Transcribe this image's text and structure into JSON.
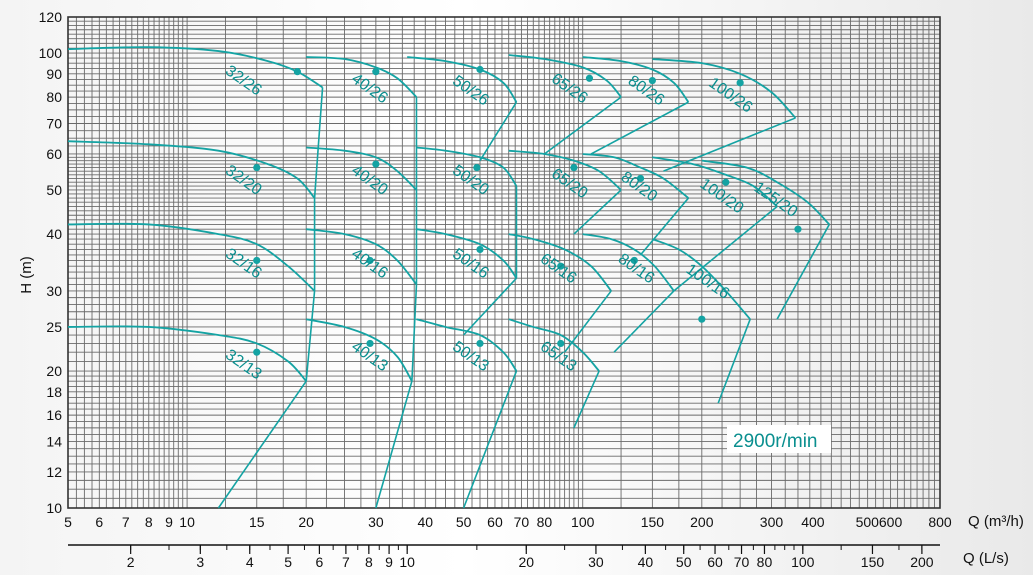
{
  "chart_data": {
    "type": "line",
    "title": "",
    "speed_label": "2900r/min",
    "xlabel": "Q (m³/h)",
    "x2label": "Q (L/s)",
    "ylabel": "H (m)",
    "x_scale": "log",
    "y_scale": "log",
    "xlim": [
      5,
      800
    ],
    "ylim": [
      10,
      120
    ],
    "grid": true,
    "x_ticks": [
      "5",
      "6",
      "7",
      "8",
      "9",
      "10",
      "15",
      "20",
      "30",
      "40",
      "50",
      "60",
      "70",
      "80",
      "100",
      "150",
      "200",
      "300",
      "400",
      "500",
      "600",
      "800"
    ],
    "x2_ticks": [
      "2",
      "3",
      "4",
      "5",
      "6",
      "7",
      "8",
      "9",
      "10",
      "20",
      "30",
      "40",
      "50",
      "60",
      "70",
      "80",
      "100",
      "150",
      "200"
    ],
    "y_ticks": [
      "10",
      "12",
      "14",
      "16",
      "18",
      "20",
      "25",
      "30",
      "40",
      "50",
      "60",
      "70",
      "80",
      "90",
      "100",
      "120"
    ],
    "series": [
      {
        "name": "32/26",
        "color": "#14a3a3",
        "x": [
          5,
          8,
          12,
          16,
          19,
          22
        ],
        "y": [
          102,
          103,
          101,
          96,
          91,
          84
        ],
        "op": [
          19,
          91
        ]
      },
      {
        "name": "40/26",
        "color": "#14a3a3",
        "x": [
          20,
          25,
          30,
          34,
          38
        ],
        "y": [
          98,
          97,
          93,
          88,
          80
        ],
        "op": [
          30,
          91
        ]
      },
      {
        "name": "50/26",
        "color": "#14a3a3",
        "x": [
          36,
          45,
          55,
          63,
          68
        ],
        "y": [
          98,
          96,
          92,
          86,
          78
        ],
        "op": [
          55,
          92
        ]
      },
      {
        "name": "65/26",
        "color": "#14a3a3",
        "x": [
          65,
          80,
          100,
          115,
          125
        ],
        "y": [
          99,
          97,
          93,
          87,
          80
        ],
        "op": [
          104,
          88
        ]
      },
      {
        "name": "80/26",
        "color": "#14a3a3",
        "x": [
          100,
          125,
          150,
          170,
          185
        ],
        "y": [
          98,
          96,
          92,
          86,
          78
        ],
        "op": [
          150,
          87
        ]
      },
      {
        "name": "100/26",
        "color": "#14a3a3",
        "x": [
          150,
          200,
          250,
          300,
          345
        ],
        "y": [
          97,
          95,
          90,
          82,
          72
        ],
        "op": [
          250,
          86
        ]
      },
      {
        "name": "32/20",
        "color": "#14a3a3",
        "x": [
          5,
          8,
          12,
          16,
          19,
          21
        ],
        "y": [
          64,
          63,
          61,
          57,
          53,
          48
        ],
        "op": [
          15,
          56
        ]
      },
      {
        "name": "40/20",
        "color": "#14a3a3",
        "x": [
          20,
          25,
          30,
          34,
          38
        ],
        "y": [
          62,
          61,
          59,
          55,
          50
        ],
        "op": [
          30,
          57
        ]
      },
      {
        "name": "50/20",
        "color": "#14a3a3",
        "x": [
          38,
          45,
          55,
          63,
          68
        ],
        "y": [
          62,
          61,
          59,
          56,
          51
        ],
        "op": [
          54,
          56
        ]
      },
      {
        "name": "65/20",
        "color": "#14a3a3",
        "x": [
          65,
          80,
          95,
          110,
          125
        ],
        "y": [
          61,
          60,
          58,
          55,
          50
        ],
        "op": [
          95,
          56
        ]
      },
      {
        "name": "80/20",
        "color": "#14a3a3",
        "x": [
          100,
          120,
          140,
          160,
          185
        ],
        "y": [
          60,
          59,
          56,
          53,
          48
        ],
        "op": [
          140,
          53
        ]
      },
      {
        "name": "100/20",
        "color": "#14a3a3",
        "x": [
          150,
          190,
          230,
          270,
          310
        ],
        "y": [
          59,
          57,
          54,
          51,
          46
        ],
        "op": [
          230,
          52
        ]
      },
      {
        "name": "125/20",
        "color": "#14a3a3",
        "x": [
          200,
          260,
          310,
          370,
          420
        ],
        "y": [
          58,
          56,
          52,
          47,
          42
        ],
        "op": [
          350,
          41
        ]
      },
      {
        "name": "32/16",
        "color": "#14a3a3",
        "x": [
          5,
          8,
          12,
          15,
          18,
          21
        ],
        "y": [
          42,
          42,
          40,
          38,
          34,
          30
        ],
        "op": [
          15,
          35
        ]
      },
      {
        "name": "40/16",
        "color": "#14a3a3",
        "x": [
          20,
          25,
          30,
          34,
          38
        ],
        "y": [
          41,
          40,
          38,
          35,
          31
        ],
        "op": [
          29,
          35
        ]
      },
      {
        "name": "50/16",
        "color": "#14a3a3",
        "x": [
          38,
          45,
          55,
          63,
          68
        ],
        "y": [
          41,
          40,
          38,
          35,
          32
        ],
        "op": [
          55,
          37
        ]
      },
      {
        "name": "65/16",
        "color": "#14a3a3",
        "x": [
          65,
          75,
          90,
          105,
          118
        ],
        "y": [
          40,
          39,
          37,
          34,
          30
        ],
        "op": [
          88,
          34
        ]
      },
      {
        "name": "80/16",
        "color": "#14a3a3",
        "x": [
          100,
          118,
          135,
          152,
          170
        ],
        "y": [
          40,
          39,
          37,
          34,
          30
        ],
        "op": [
          135,
          35
        ]
      },
      {
        "name": "100/16",
        "color": "#14a3a3",
        "x": [
          150,
          175,
          200,
          230,
          265
        ],
        "y": [
          39,
          37,
          34,
          30,
          26
        ],
        "op": [
          200,
          26
        ]
      },
      {
        "name": "32/13",
        "color": "#14a3a3",
        "x": [
          5,
          8,
          12,
          15,
          18,
          20
        ],
        "y": [
          25,
          25,
          24,
          23,
          21,
          19
        ],
        "op": [
          15,
          22
        ]
      },
      {
        "name": "40/13",
        "color": "#14a3a3",
        "x": [
          20,
          25,
          30,
          34,
          37
        ],
        "y": [
          26,
          25,
          23.5,
          21.5,
          19
        ],
        "op": [
          29,
          23
        ]
      },
      {
        "name": "50/13",
        "color": "#14a3a3",
        "x": [
          38,
          45,
          55,
          63,
          68
        ],
        "y": [
          26,
          25,
          24,
          22,
          20
        ],
        "op": [
          55,
          23
        ]
      },
      {
        "name": "65/13",
        "color": "#14a3a3",
        "x": [
          65,
          75,
          88,
          100,
          110
        ],
        "y": [
          26,
          25,
          24,
          22,
          20
        ],
        "op": [
          88,
          23
        ]
      }
    ]
  }
}
